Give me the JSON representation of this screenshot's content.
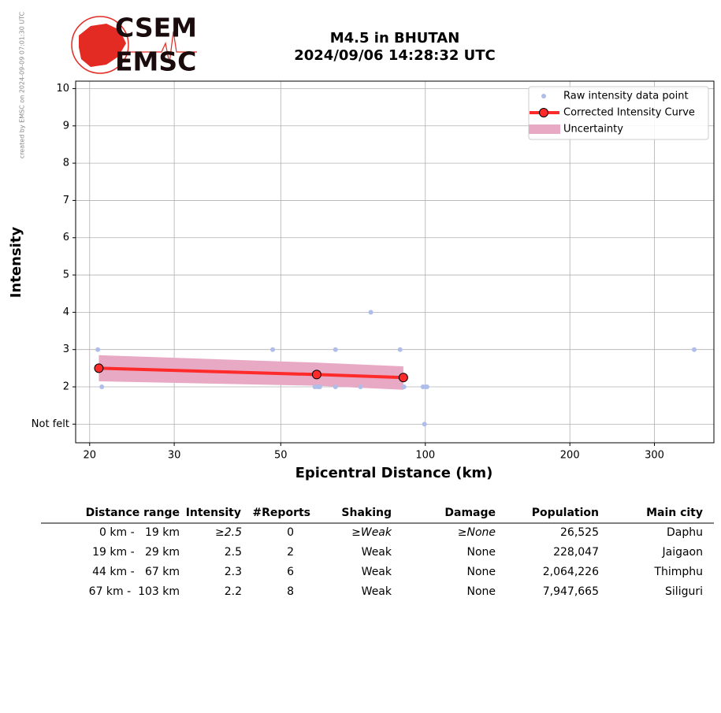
{
  "watermark": "created by EMSC on 2024-09-09 07:01:30 UTC",
  "logo": {
    "top": "CSEM",
    "bottom": "EMSC"
  },
  "chart_data": {
    "type": "scatter",
    "title": "M4.5 in BHUTAN",
    "subtitle": "2024/09/06 14:28:32 UTC",
    "x_label": "Epicentral Distance (km)",
    "y_label": "Intensity",
    "xscale": "log",
    "grid": true,
    "legend": "upper right",
    "xlim": [
      18.7,
      399
    ],
    "xticks": [
      20,
      30,
      50,
      100,
      200,
      300
    ],
    "ylim": [
      0.5,
      10.2
    ],
    "yticks": [
      {
        "value": 1,
        "label": "Not felt"
      },
      2,
      3,
      4,
      5,
      6,
      7,
      8,
      9,
      10
    ],
    "series": [
      {
        "name": "Raw intensity data point",
        "type": "scatter",
        "color": "#aebde9",
        "x": [
          20.8,
          21.2,
          48.1,
          58.9,
          59.8,
          60.3,
          65.0,
          65.0,
          73.3,
          77.0,
          88.6,
          90.3,
          98.9,
          100,
          100.8,
          99.6,
          363
        ],
        "values": [
          3,
          2,
          3,
          2,
          2,
          2,
          3,
          2,
          2,
          4,
          3,
          2,
          2,
          2,
          2,
          1,
          3
        ]
      },
      {
        "name": "Corrected Intensity Curve",
        "type": "line",
        "color": "#ff2a2a",
        "x": [
          20.9,
          59.4,
          90.0
        ],
        "values": [
          2.5,
          2.33,
          2.25
        ]
      },
      {
        "name": "Uncertainty",
        "type": "band",
        "color": "#e8a9c4",
        "x": [
          20.9,
          59.4,
          90.0
        ],
        "lower": [
          2.15,
          2.03,
          1.92
        ],
        "upper": [
          2.85,
          2.65,
          2.55
        ]
      }
    ]
  },
  "table": {
    "header": [
      "Distance range",
      "Intensity",
      "#Reports",
      "Shaking",
      "Damage",
      "Population",
      "Main city"
    ],
    "rows": [
      [
        "0 km -   19 km",
        "≥2.5",
        "0",
        "≥Weak",
        "≥None",
        "26,525",
        "Daphu"
      ],
      [
        "19 km -   29 km",
        "2.5",
        "2",
        "Weak",
        "None",
        "228,047",
        "Jaigaon"
      ],
      [
        "44 km -   67 km",
        "2.3",
        "6",
        "Weak",
        "None",
        "2,064,226",
        "Thimphu"
      ],
      [
        "67 km -  103 km",
        "2.2",
        "8",
        "Weak",
        "None",
        "7,947,665",
        "Siliguri"
      ]
    ]
  }
}
